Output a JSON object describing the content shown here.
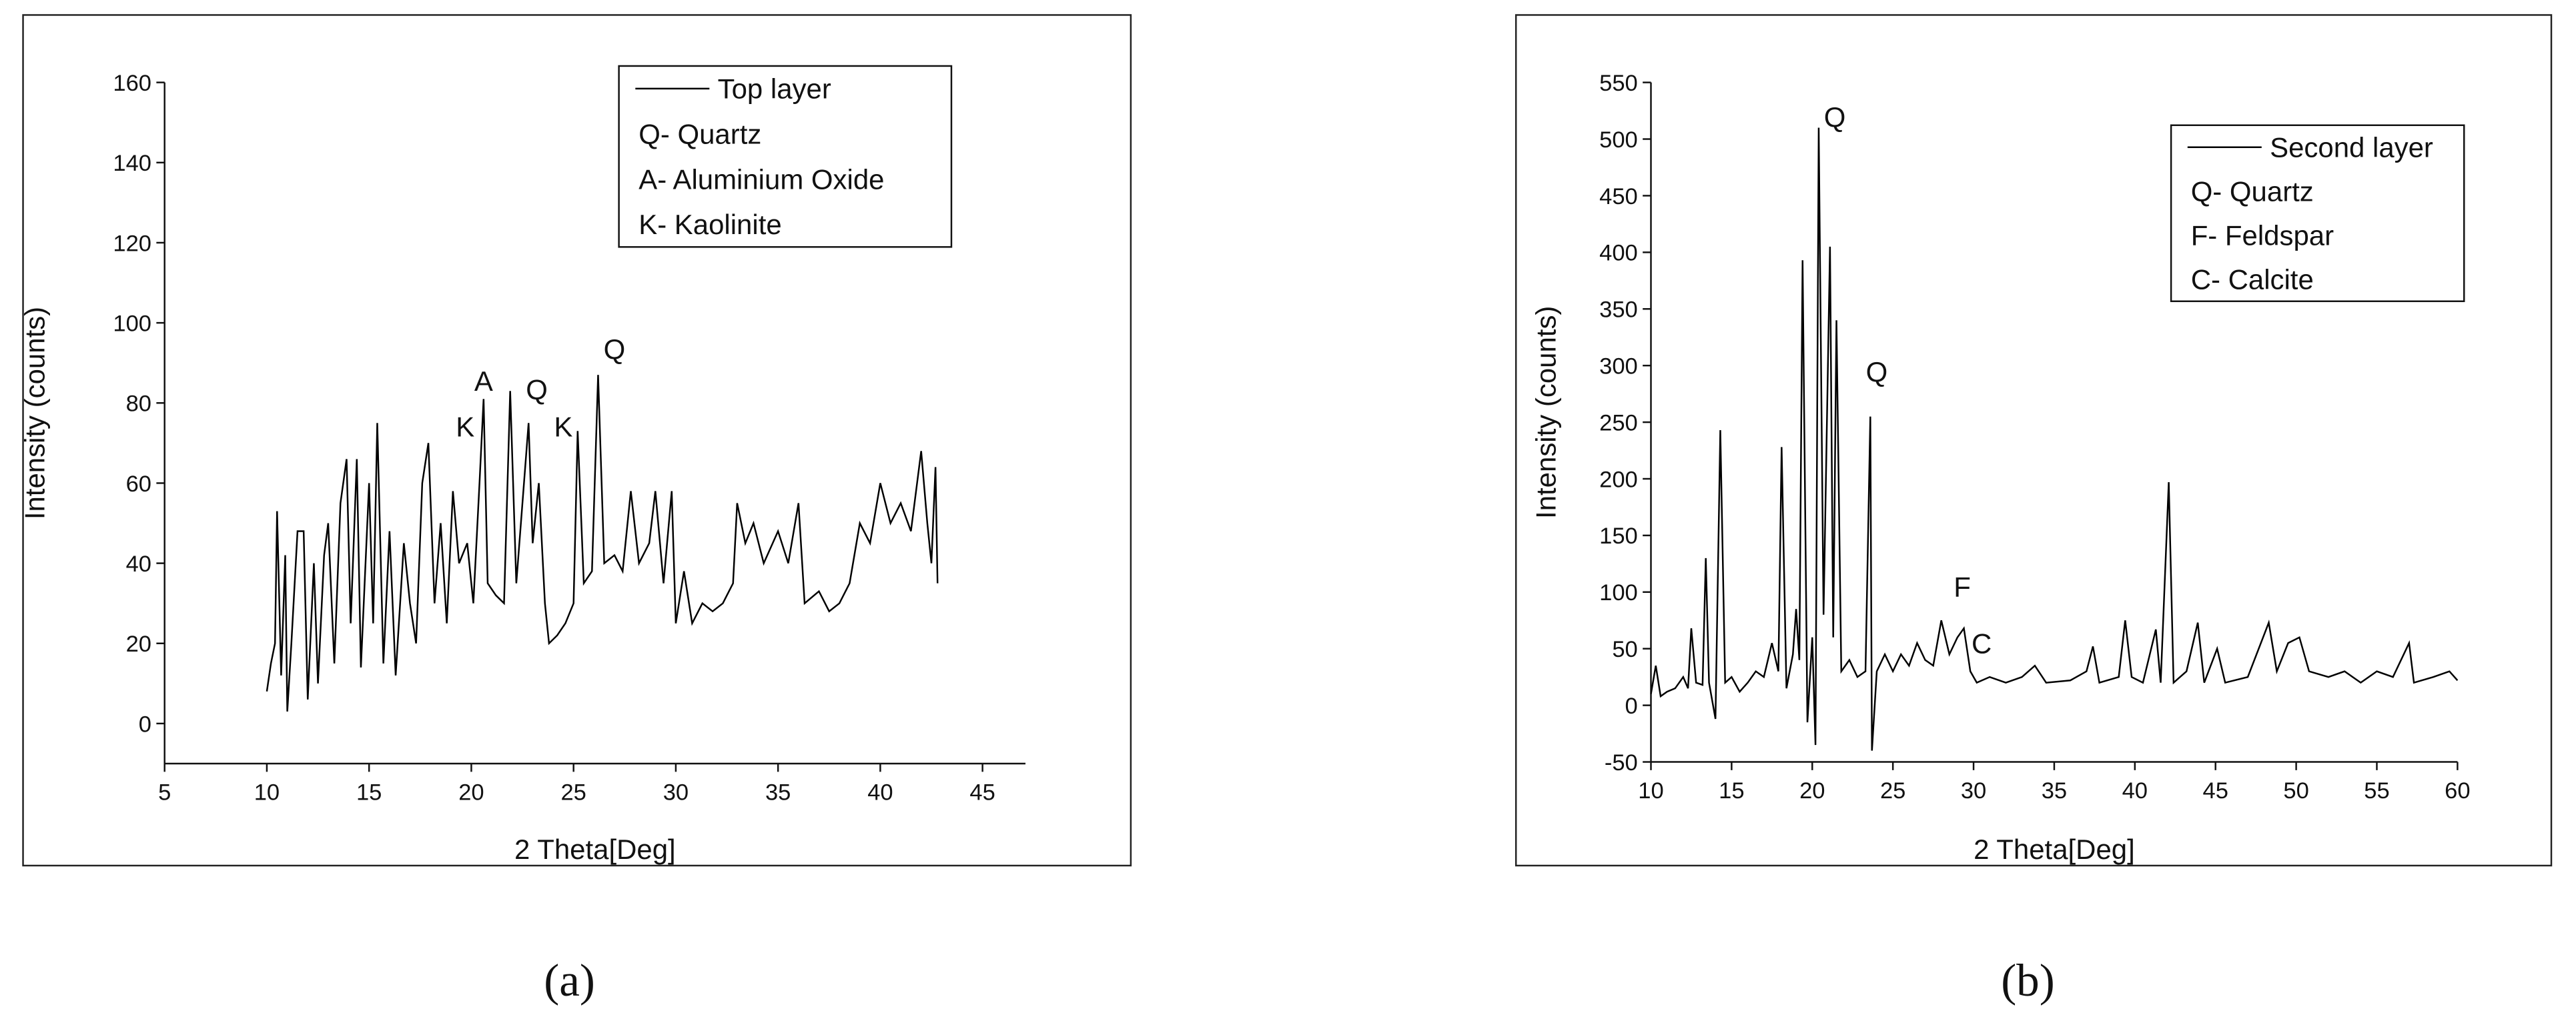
{
  "chart_data": [
    {
      "type": "line",
      "caption": "(a)",
      "x_label": "2 Theta[Deg]",
      "y_label": "Intensity (counts)",
      "xlim": [
        5,
        47.1
      ],
      "ylim": [
        -10,
        160
      ],
      "xticks": [
        5,
        10,
        15,
        20,
        25,
        30,
        35,
        40,
        45
      ],
      "yticks": [
        0,
        20,
        40,
        60,
        80,
        100,
        120,
        140,
        160
      ],
      "series": [
        {
          "name": "Top layer",
          "color": "#000000",
          "x": [
            10,
            10.2,
            10.4,
            10.5,
            10.7,
            10.9,
            11,
            11.2,
            11.5,
            11.8,
            12,
            12.3,
            12.5,
            12.8,
            13,
            13.3,
            13.6,
            13.9,
            14.1,
            14.4,
            14.6,
            15,
            15.2,
            15.4,
            15.7,
            16,
            16.3,
            16.7,
            17,
            17.3,
            17.6,
            17.9,
            18.2,
            18.5,
            18.8,
            19.1,
            19.4,
            19.8,
            20.1,
            20.4,
            20.6,
            20.8,
            21.2,
            21.6,
            21.9,
            22.2,
            22.5,
            22.8,
            23,
            23.3,
            23.6,
            23.8,
            24.2,
            24.6,
            25,
            25.2,
            25.5,
            25.9,
            26.2,
            26.5,
            27,
            27.4,
            27.8,
            28.2,
            28.7,
            29,
            29.4,
            29.8,
            30,
            30.4,
            30.8,
            31.3,
            31.8,
            32.3,
            32.8,
            33,
            33.4,
            33.8,
            34.3,
            35,
            35.5,
            36,
            36.3,
            37,
            37.5,
            38,
            38.5,
            39,
            39.5,
            40,
            40.5,
            41,
            41.5,
            42,
            42.3,
            42.5,
            42.7,
            42.8
          ],
          "values": [
            8,
            15,
            20,
            53,
            12,
            42,
            3,
            20,
            48,
            48,
            6,
            40,
            10,
            42,
            50,
            15,
            55,
            66,
            25,
            66,
            14,
            60,
            25,
            75,
            15,
            48,
            12,
            45,
            30,
            20,
            60,
            70,
            30,
            50,
            25,
            58,
            40,
            45,
            30,
            60,
            81,
            35,
            32,
            30,
            83,
            35,
            55,
            75,
            45,
            60,
            30,
            20,
            22,
            25,
            30,
            73,
            35,
            38,
            87,
            40,
            42,
            38,
            58,
            40,
            45,
            58,
            35,
            58,
            25,
            38,
            25,
            30,
            28,
            30,
            35,
            55,
            45,
            50,
            40,
            48,
            40,
            55,
            30,
            33,
            28,
            30,
            35,
            50,
            45,
            60,
            50,
            55,
            48,
            68,
            50,
            40,
            64,
            35
          ]
        }
      ],
      "legend_notes": [
        "Q- Quartz",
        "A- Aluminium Oxide",
        "K- Kaolinite"
      ],
      "annotations": [
        {
          "text": "A",
          "x": 20.6,
          "y": 83
        },
        {
          "text": "K",
          "x": 19.7,
          "y": 71.6
        },
        {
          "text": "Q",
          "x": 23.2,
          "y": 81
        },
        {
          "text": "K",
          "x": 24.5,
          "y": 71.6
        },
        {
          "text": "Q",
          "x": 27,
          "y": 91
        }
      ]
    },
    {
      "type": "line",
      "caption": "(b)",
      "x_label": "2 Theta[Deg]",
      "y_label": "Intensity (counts)",
      "xlim": [
        10,
        60
      ],
      "ylim": [
        -50,
        550
      ],
      "xticks": [
        10,
        15,
        20,
        25,
        30,
        35,
        40,
        45,
        50,
        55,
        60
      ],
      "yticks": [
        -50,
        0,
        50,
        100,
        150,
        200,
        250,
        300,
        350,
        400,
        450,
        500,
        550
      ],
      "series": [
        {
          "name": "Second layer",
          "color": "#000000",
          "x": [
            10,
            10.3,
            10.6,
            11,
            11.5,
            12,
            12.3,
            12.5,
            12.8,
            13.2,
            13.4,
            13.6,
            14,
            14.3,
            14.6,
            15,
            15.5,
            16,
            16.5,
            17,
            17.5,
            17.9,
            18.1,
            18.4,
            18.8,
            19,
            19.2,
            19.4,
            19.7,
            20,
            20.2,
            20.4,
            20.7,
            21.1,
            21.3,
            21.5,
            21.8,
            22.3,
            22.8,
            23.3,
            23.6,
            23.7,
            24,
            24.5,
            25,
            25.5,
            26,
            26.5,
            27,
            27.5,
            28,
            28.5,
            29,
            29.4,
            29.8,
            30.2,
            31,
            32,
            33,
            33.8,
            34.5,
            36,
            37,
            37.4,
            37.8,
            39,
            39.4,
            39.8,
            40.5,
            41.3,
            41.6,
            42.1,
            42.4,
            43.2,
            43.9,
            44.3,
            45.1,
            45.6,
            47,
            48.3,
            48.8,
            49.5,
            50.2,
            50.8,
            52,
            53,
            54,
            55,
            56,
            57,
            57.3,
            58.5,
            59.5,
            60
          ],
          "values": [
            10,
            35,
            8,
            12,
            15,
            25,
            15,
            68,
            20,
            18,
            130,
            20,
            -12,
            243,
            20,
            25,
            12,
            20,
            30,
            25,
            55,
            30,
            228,
            15,
            45,
            85,
            40,
            393,
            -15,
            60,
            -35,
            510,
            80,
            405,
            60,
            340,
            30,
            40,
            25,
            30,
            255,
            -40,
            30,
            45,
            30,
            45,
            35,
            55,
            40,
            35,
            75,
            45,
            60,
            68,
            30,
            20,
            25,
            20,
            25,
            35,
            20,
            22,
            30,
            52,
            20,
            25,
            75,
            25,
            20,
            67,
            20,
            197,
            20,
            30,
            73,
            20,
            50,
            20,
            25,
            73,
            30,
            55,
            60,
            30,
            25,
            30,
            20,
            30,
            25,
            55,
            20,
            25,
            30,
            22
          ]
        }
      ],
      "legend_notes": [
        "Q- Quartz",
        "F- Feldspar",
        "C- Calcite"
      ],
      "annotations": [
        {
          "text": "Q",
          "x": 21.4,
          "y": 511
        },
        {
          "text": "Q",
          "x": 24,
          "y": 286
        },
        {
          "text": "F",
          "x": 29.3,
          "y": 96
        },
        {
          "text": "C",
          "x": 30.5,
          "y": 46
        }
      ]
    }
  ]
}
